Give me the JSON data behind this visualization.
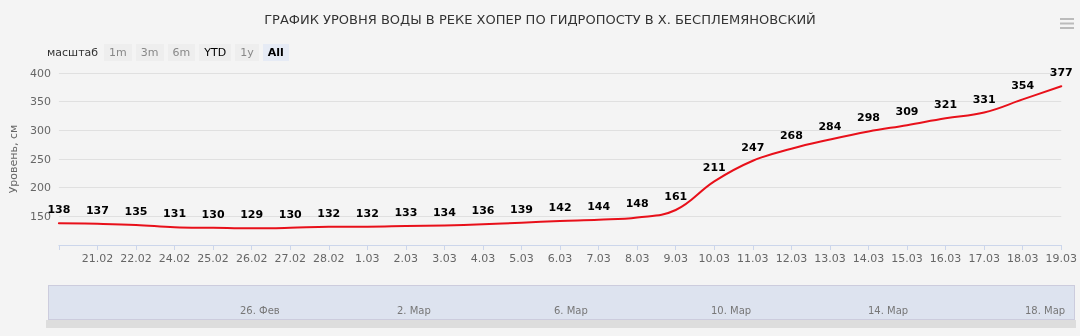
{
  "chart_data": {
    "type": "line",
    "title": "ГРАФИК УРОВНЯ ВОДЫ В РЕКЕ ХОПЕР ПО ГИДРОПОСТУ В Х. БЕСПЛЕМЯНОВСКИЙ",
    "ylabel": "Уровень, см",
    "categories": [
      null,
      "21.02",
      "22.02",
      "24.02",
      "25.02",
      "26.02",
      "27.02",
      "28.02",
      "1.03",
      "2.03",
      "3.03",
      "4.03",
      "5.03",
      "6.03",
      "7.03",
      "8.03",
      "9.03",
      "10.03",
      "11.03",
      "12.03",
      "13.03",
      "14.03",
      "15.03",
      "16.03",
      "17.03",
      "18.03",
      "19.03"
    ],
    "series": [
      {
        "color": "#e8101a",
        "values": [
          138,
          137,
          135,
          131,
          130,
          129,
          130,
          132,
          132,
          133,
          134,
          136,
          139,
          142,
          144,
          148,
          161,
          211,
          247,
          268,
          284,
          298,
          309,
          321,
          331,
          354,
          377
        ]
      }
    ],
    "ylim": [
      100,
      400
    ],
    "yticks": [
      {
        "value": 100,
        "label": null
      },
      150,
      200,
      250,
      300,
      350,
      400
    ],
    "grid": "y",
    "marker": "none",
    "line_style": "solid",
    "data_labels": true,
    "annotations": [
      "масштаб",
      "1m",
      "3m",
      "6m",
      "YTD",
      "1y",
      "All",
      "26. Фев",
      "2. Мар",
      "6. Мар",
      "10. Мар",
      "14. Мар",
      "18. Мар"
    ]
  }
}
